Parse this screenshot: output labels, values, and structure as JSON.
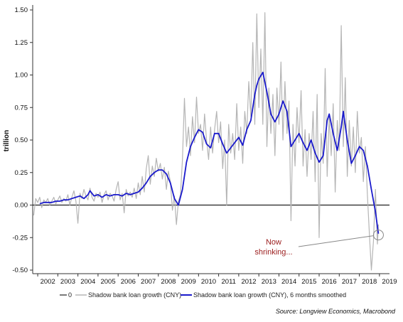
{
  "chart_data": {
    "type": "line",
    "ylabel": "trillion",
    "ylim": [
      -0.5,
      1.5
    ],
    "y_ticks": [
      "1.50",
      "1.25",
      "1.00",
      "0.75",
      "0.50",
      "0.25",
      "0.00",
      "-0.25",
      "-0.50"
    ],
    "x_ticks": [
      "2002",
      "2003",
      "2004",
      "2005",
      "2006",
      "2007",
      "2008",
      "2009",
      "2010",
      "2011",
      "2012",
      "2013",
      "2014",
      "2015",
      "2016",
      "2017",
      "2018",
      "2019"
    ],
    "xlim": [
      2001.75,
      2019.5
    ],
    "zero_line": 0,
    "series": [
      {
        "name": "Shadow bank loan growth (CNY)",
        "color": "#b5b5b5",
        "points": [
          [
            2001.8,
            -0.08
          ],
          [
            2001.9,
            0.05
          ],
          [
            2002.0,
            0.02
          ],
          [
            2002.1,
            0.06
          ],
          [
            2002.2,
            -0.02
          ],
          [
            2002.3,
            0.04
          ],
          [
            2002.4,
            0.02
          ],
          [
            2002.5,
            0.05
          ],
          [
            2002.6,
            0.0
          ],
          [
            2002.7,
            0.03
          ],
          [
            2002.8,
            0.06
          ],
          [
            2002.9,
            0.01
          ],
          [
            2003.0,
            0.04
          ],
          [
            2003.1,
            0.07
          ],
          [
            2003.2,
            0.02
          ],
          [
            2003.3,
            0.05
          ],
          [
            2003.4,
            0.03
          ],
          [
            2003.5,
            0.08
          ],
          [
            2003.6,
            0.0
          ],
          [
            2003.7,
            0.06
          ],
          [
            2003.8,
            0.11
          ],
          [
            2003.9,
            0.03
          ],
          [
            2004.0,
            -0.14
          ],
          [
            2004.1,
            0.09
          ],
          [
            2004.2,
            0.05
          ],
          [
            2004.3,
            0.12
          ],
          [
            2004.4,
            0.07
          ],
          [
            2004.5,
            0.04
          ],
          [
            2004.6,
            0.13
          ],
          [
            2004.7,
            0.06
          ],
          [
            2004.8,
            0.03
          ],
          [
            2004.9,
            0.09
          ],
          [
            2005.0,
            0.06
          ],
          [
            2005.1,
            0.1
          ],
          [
            2005.2,
            0.02
          ],
          [
            2005.3,
            0.08
          ],
          [
            2005.4,
            0.11
          ],
          [
            2005.5,
            0.04
          ],
          [
            2005.6,
            0.09
          ],
          [
            2005.7,
            0.07
          ],
          [
            2005.8,
            0.03
          ],
          [
            2005.9,
            0.12
          ],
          [
            2006.0,
            0.18
          ],
          [
            2006.1,
            0.04
          ],
          [
            2006.2,
            0.09
          ],
          [
            2006.3,
            -0.06
          ],
          [
            2006.4,
            0.12
          ],
          [
            2006.5,
            0.07
          ],
          [
            2006.6,
            0.1
          ],
          [
            2006.7,
            0.06
          ],
          [
            2006.8,
            0.13
          ],
          [
            2006.9,
            0.05
          ],
          [
            2007.0,
            0.17
          ],
          [
            2007.1,
            0.08
          ],
          [
            2007.2,
            0.22
          ],
          [
            2007.3,
            0.1
          ],
          [
            2007.4,
            0.28
          ],
          [
            2007.5,
            0.38
          ],
          [
            2007.6,
            0.16
          ],
          [
            2007.7,
            0.3
          ],
          [
            2007.8,
            0.22
          ],
          [
            2007.9,
            0.36
          ],
          [
            2008.0,
            0.26
          ],
          [
            2008.1,
            0.32
          ],
          [
            2008.2,
            0.2
          ],
          [
            2008.3,
            0.29
          ],
          [
            2008.4,
            0.12
          ],
          [
            2008.5,
            0.26
          ],
          [
            2008.6,
            0.18
          ],
          [
            2008.7,
            -0.04
          ],
          [
            2008.8,
            0.07
          ],
          [
            2008.9,
            -0.15
          ],
          [
            2009.0,
            0.03
          ],
          [
            2009.1,
            0.08
          ],
          [
            2009.2,
            0.35
          ],
          [
            2009.3,
            0.82
          ],
          [
            2009.4,
            0.45
          ],
          [
            2009.5,
            0.6
          ],
          [
            2009.6,
            0.38
          ],
          [
            2009.7,
            0.68
          ],
          [
            2009.8,
            0.48
          ],
          [
            2009.9,
            0.83
          ],
          [
            2010.0,
            0.55
          ],
          [
            2010.1,
            0.62
          ],
          [
            2010.2,
            0.42
          ],
          [
            2010.3,
            0.7
          ],
          [
            2010.4,
            0.5
          ],
          [
            2010.5,
            0.35
          ],
          [
            2010.6,
            0.6
          ],
          [
            2010.7,
            0.4
          ],
          [
            2010.8,
            0.58
          ],
          [
            2010.9,
            0.72
          ],
          [
            2011.0,
            0.48
          ],
          [
            2011.1,
            0.64
          ],
          [
            2011.2,
            0.28
          ],
          [
            2011.3,
            0.5
          ],
          [
            2011.4,
            0.0
          ],
          [
            2011.5,
            0.62
          ],
          [
            2011.6,
            0.4
          ],
          [
            2011.7,
            0.55
          ],
          [
            2011.8,
            0.35
          ],
          [
            2011.9,
            0.78
          ],
          [
            2012.0,
            0.42
          ],
          [
            2012.1,
            0.6
          ],
          [
            2012.2,
            0.32
          ],
          [
            2012.3,
            0.72
          ],
          [
            2012.4,
            0.55
          ],
          [
            2012.5,
            0.95
          ],
          [
            2012.6,
            0.68
          ],
          [
            2012.7,
            1.25
          ],
          [
            2012.8,
            0.62
          ],
          [
            2012.9,
            1.47
          ],
          [
            2013.0,
            0.75
          ],
          [
            2013.1,
            1.2
          ],
          [
            2013.2,
            0.62
          ],
          [
            2013.3,
            1.48
          ],
          [
            2013.4,
            0.45
          ],
          [
            2013.5,
            0.9
          ],
          [
            2013.6,
            0.55
          ],
          [
            2013.7,
            0.85
          ],
          [
            2013.8,
            0.38
          ],
          [
            2013.9,
            0.9
          ],
          [
            2014.0,
            0.62
          ],
          [
            2014.1,
            1.1
          ],
          [
            2014.2,
            0.5
          ],
          [
            2014.3,
            0.95
          ],
          [
            2014.4,
            0.55
          ],
          [
            2014.5,
            0.8
          ],
          [
            2014.6,
            -0.12
          ],
          [
            2014.7,
            0.62
          ],
          [
            2014.8,
            0.3
          ],
          [
            2014.9,
            0.75
          ],
          [
            2015.0,
            0.48
          ],
          [
            2015.1,
            0.88
          ],
          [
            2015.2,
            0.3
          ],
          [
            2015.3,
            0.58
          ],
          [
            2015.4,
            0.22
          ],
          [
            2015.5,
            0.55
          ],
          [
            2015.6,
            0.35
          ],
          [
            2015.7,
            0.72
          ],
          [
            2015.8,
            0.18
          ],
          [
            2015.9,
            0.85
          ],
          [
            2016.0,
            -0.25
          ],
          [
            2016.1,
            0.55
          ],
          [
            2016.2,
            0.32
          ],
          [
            2016.3,
            1.05
          ],
          [
            2016.4,
            0.22
          ],
          [
            2016.5,
            0.68
          ],
          [
            2016.6,
            0.38
          ],
          [
            2016.7,
            0.78
          ],
          [
            2016.8,
            0.1
          ],
          [
            2016.9,
            0.65
          ],
          [
            2017.0,
            0.42
          ],
          [
            2017.1,
            1.38
          ],
          [
            2017.2,
            0.45
          ],
          [
            2017.3,
            0.98
          ],
          [
            2017.4,
            0.22
          ],
          [
            2017.5,
            0.65
          ],
          [
            2017.6,
            0.3
          ],
          [
            2017.7,
            0.6
          ],
          [
            2017.8,
            0.25
          ],
          [
            2017.9,
            0.72
          ],
          [
            2018.0,
            0.4
          ],
          [
            2018.1,
            0.52
          ],
          [
            2018.2,
            0.18
          ],
          [
            2018.3,
            0.45
          ],
          [
            2018.4,
            0.08
          ],
          [
            2018.5,
            -0.22
          ],
          [
            2018.6,
            -0.5
          ],
          [
            2018.7,
            -0.28
          ],
          [
            2018.8,
            0.12
          ],
          [
            2018.9,
            -0.3
          ],
          [
            2018.95,
            -0.15
          ]
        ]
      },
      {
        "name": "Shadow bank loan growth (CNY), 6 months smoothed",
        "color": "#1a1acc",
        "points": [
          [
            2002.1,
            0.01
          ],
          [
            2002.3,
            0.02
          ],
          [
            2002.5,
            0.02
          ],
          [
            2002.7,
            0.02
          ],
          [
            2002.9,
            0.03
          ],
          [
            2003.1,
            0.03
          ],
          [
            2003.3,
            0.04
          ],
          [
            2003.5,
            0.04
          ],
          [
            2003.7,
            0.05
          ],
          [
            2003.9,
            0.06
          ],
          [
            2004.1,
            0.07
          ],
          [
            2004.3,
            0.05
          ],
          [
            2004.5,
            0.08
          ],
          [
            2004.6,
            0.11
          ],
          [
            2004.8,
            0.07
          ],
          [
            2005.0,
            0.08
          ],
          [
            2005.2,
            0.06
          ],
          [
            2005.4,
            0.08
          ],
          [
            2005.6,
            0.07
          ],
          [
            2005.8,
            0.08
          ],
          [
            2006.0,
            0.08
          ],
          [
            2006.2,
            0.07
          ],
          [
            2006.4,
            0.09
          ],
          [
            2006.6,
            0.08
          ],
          [
            2006.8,
            0.09
          ],
          [
            2007.0,
            0.1
          ],
          [
            2007.2,
            0.13
          ],
          [
            2007.4,
            0.17
          ],
          [
            2007.6,
            0.22
          ],
          [
            2007.8,
            0.25
          ],
          [
            2008.0,
            0.27
          ],
          [
            2008.2,
            0.27
          ],
          [
            2008.4,
            0.24
          ],
          [
            2008.6,
            0.17
          ],
          [
            2008.8,
            0.05
          ],
          [
            2009.0,
            0.0
          ],
          [
            2009.2,
            0.12
          ],
          [
            2009.4,
            0.33
          ],
          [
            2009.6,
            0.45
          ],
          [
            2009.8,
            0.52
          ],
          [
            2010.0,
            0.58
          ],
          [
            2010.2,
            0.56
          ],
          [
            2010.4,
            0.47
          ],
          [
            2010.6,
            0.44
          ],
          [
            2010.8,
            0.55
          ],
          [
            2011.0,
            0.55
          ],
          [
            2011.2,
            0.47
          ],
          [
            2011.4,
            0.4
          ],
          [
            2011.6,
            0.44
          ],
          [
            2011.8,
            0.48
          ],
          [
            2012.0,
            0.52
          ],
          [
            2012.2,
            0.46
          ],
          [
            2012.4,
            0.58
          ],
          [
            2012.6,
            0.65
          ],
          [
            2012.8,
            0.85
          ],
          [
            2012.9,
            0.92
          ],
          [
            2013.0,
            0.97
          ],
          [
            2013.2,
            1.02
          ],
          [
            2013.4,
            0.87
          ],
          [
            2013.6,
            0.7
          ],
          [
            2013.8,
            0.64
          ],
          [
            2014.0,
            0.7
          ],
          [
            2014.2,
            0.8
          ],
          [
            2014.4,
            0.72
          ],
          [
            2014.6,
            0.45
          ],
          [
            2014.8,
            0.5
          ],
          [
            2015.0,
            0.55
          ],
          [
            2015.2,
            0.48
          ],
          [
            2015.4,
            0.42
          ],
          [
            2015.6,
            0.5
          ],
          [
            2015.8,
            0.4
          ],
          [
            2016.0,
            0.33
          ],
          [
            2016.2,
            0.38
          ],
          [
            2016.4,
            0.65
          ],
          [
            2016.5,
            0.7
          ],
          [
            2016.7,
            0.55
          ],
          [
            2016.9,
            0.42
          ],
          [
            2017.1,
            0.6
          ],
          [
            2017.2,
            0.72
          ],
          [
            2017.4,
            0.5
          ],
          [
            2017.6,
            0.32
          ],
          [
            2017.8,
            0.38
          ],
          [
            2018.0,
            0.45
          ],
          [
            2018.2,
            0.42
          ],
          [
            2018.4,
            0.3
          ],
          [
            2018.6,
            0.12
          ],
          [
            2018.8,
            -0.05
          ],
          [
            2018.95,
            -0.22
          ]
        ]
      }
    ],
    "legend": {
      "placement": "bottom",
      "zero_label": "0",
      "items": [
        "Shadow bank loan growth (CNY)",
        "Shadow bank loan growth (CNY), 6 months smoothed"
      ]
    },
    "annotation": {
      "text_line1": "Now",
      "text_line2": "shrinking...",
      "x": 2018.95,
      "y": -0.23
    },
    "source": "Source: Longview Economics, Macrobond"
  }
}
